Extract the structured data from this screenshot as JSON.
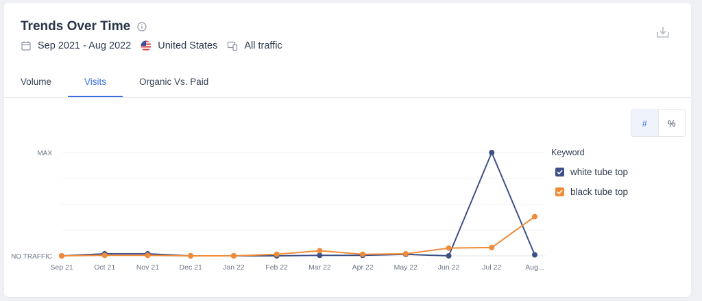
{
  "header": {
    "title": "Trends Over Time",
    "date_range": "Sep 2021 - Aug 2022",
    "country": "United States",
    "traffic": "All traffic"
  },
  "tabs": [
    {
      "label": "Volume",
      "active": false
    },
    {
      "label": "Visits",
      "active": true
    },
    {
      "label": "Organic Vs. Paid",
      "active": false
    }
  ],
  "toggle": {
    "count": "#",
    "percent": "%"
  },
  "legend": {
    "title": "Keyword",
    "items": [
      {
        "label": "white tube top",
        "color": "#3d5088"
      },
      {
        "label": "black tube top",
        "color": "#f08b3a"
      }
    ]
  },
  "chart_data": {
    "type": "line",
    "categories": [
      "Sep 21",
      "Oct 21",
      "Nov 21",
      "Dec 21",
      "Jan 22",
      "Feb 22",
      "Mar 22",
      "Apr 22",
      "May 22",
      "Jun 22",
      "Jul 22",
      "Aug..."
    ],
    "y_tick_labels": {
      "min": "NO TRAFFIC",
      "max": "MAX"
    },
    "ylim": [
      0,
      100
    ],
    "grid": true,
    "series": [
      {
        "name": "white tube top",
        "color": "#3d5088",
        "values": [
          0,
          2,
          2,
          0,
          0,
          0,
          0.5,
          0.5,
          1.5,
          0,
          100,
          1
        ]
      },
      {
        "name": "black tube top",
        "color": "#f08b3a",
        "values": [
          0,
          0.5,
          0.5,
          0,
          0,
          1.5,
          5,
          1.5,
          2,
          7.5,
          8,
          38
        ]
      }
    ]
  }
}
